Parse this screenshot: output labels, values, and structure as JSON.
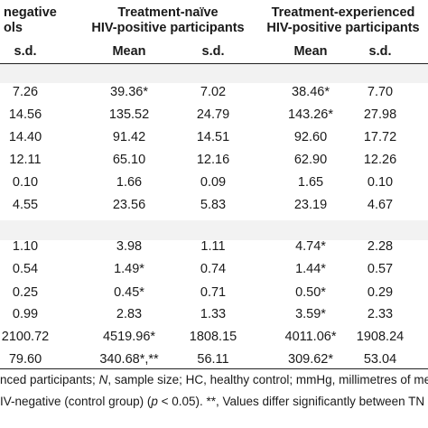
{
  "headers": {
    "group1": [
      "negative",
      "ols"
    ],
    "group2": [
      "Treatment-naïve",
      "HIV-positive participants"
    ],
    "group3": [
      "Treatment-experienced",
      "HIV-positive participants"
    ],
    "subheaders": [
      "s.d.",
      "Mean",
      "s.d.",
      "Mean",
      "s.d."
    ]
  },
  "section1": [
    [
      "7.26",
      "39.36*",
      "7.02",
      "38.46*",
      "7.70"
    ],
    [
      "14.56",
      "135.52",
      "24.79",
      "143.26*",
      "27.98"
    ],
    [
      "14.40",
      "91.42",
      "14.51",
      "92.60",
      "17.72"
    ],
    [
      "12.11",
      "65.10",
      "12.16",
      "62.90",
      "12.26"
    ],
    [
      "0.10",
      "1.66",
      "0.09",
      "1.65",
      "0.10"
    ],
    [
      "4.55",
      "23.56",
      "5.83",
      "23.19",
      "4.67"
    ]
  ],
  "section2": [
    [
      "1.10",
      "3.98",
      "1.11",
      "4.74*",
      "2.28"
    ],
    [
      "0.54",
      "1.49*",
      "0.74",
      "1.44*",
      "0.57"
    ],
    [
      "0.25",
      "0.45*",
      "0.71",
      "0.50*",
      "0.29"
    ],
    [
      "0.99",
      "2.83",
      "1.33",
      "3.59*",
      "2.33"
    ],
    [
      "2100.72",
      "4519.96*",
      "1808.15",
      "4011.06*",
      "1908.24"
    ],
    [
      "79.60",
      "340.68*,**",
      "56.11",
      "309.62*",
      "53.04"
    ]
  ],
  "footnote": {
    "line1_a": "nced participants; ",
    "line1_n": "N",
    "line1_b": ", sample size; HC, healthy control; mmHg, millimetres of me",
    "line2_a": "IV-negative (control group) (",
    "line2_p": "p",
    "line2_b": " < 0.05). **, Values differ significantly between TN"
  }
}
